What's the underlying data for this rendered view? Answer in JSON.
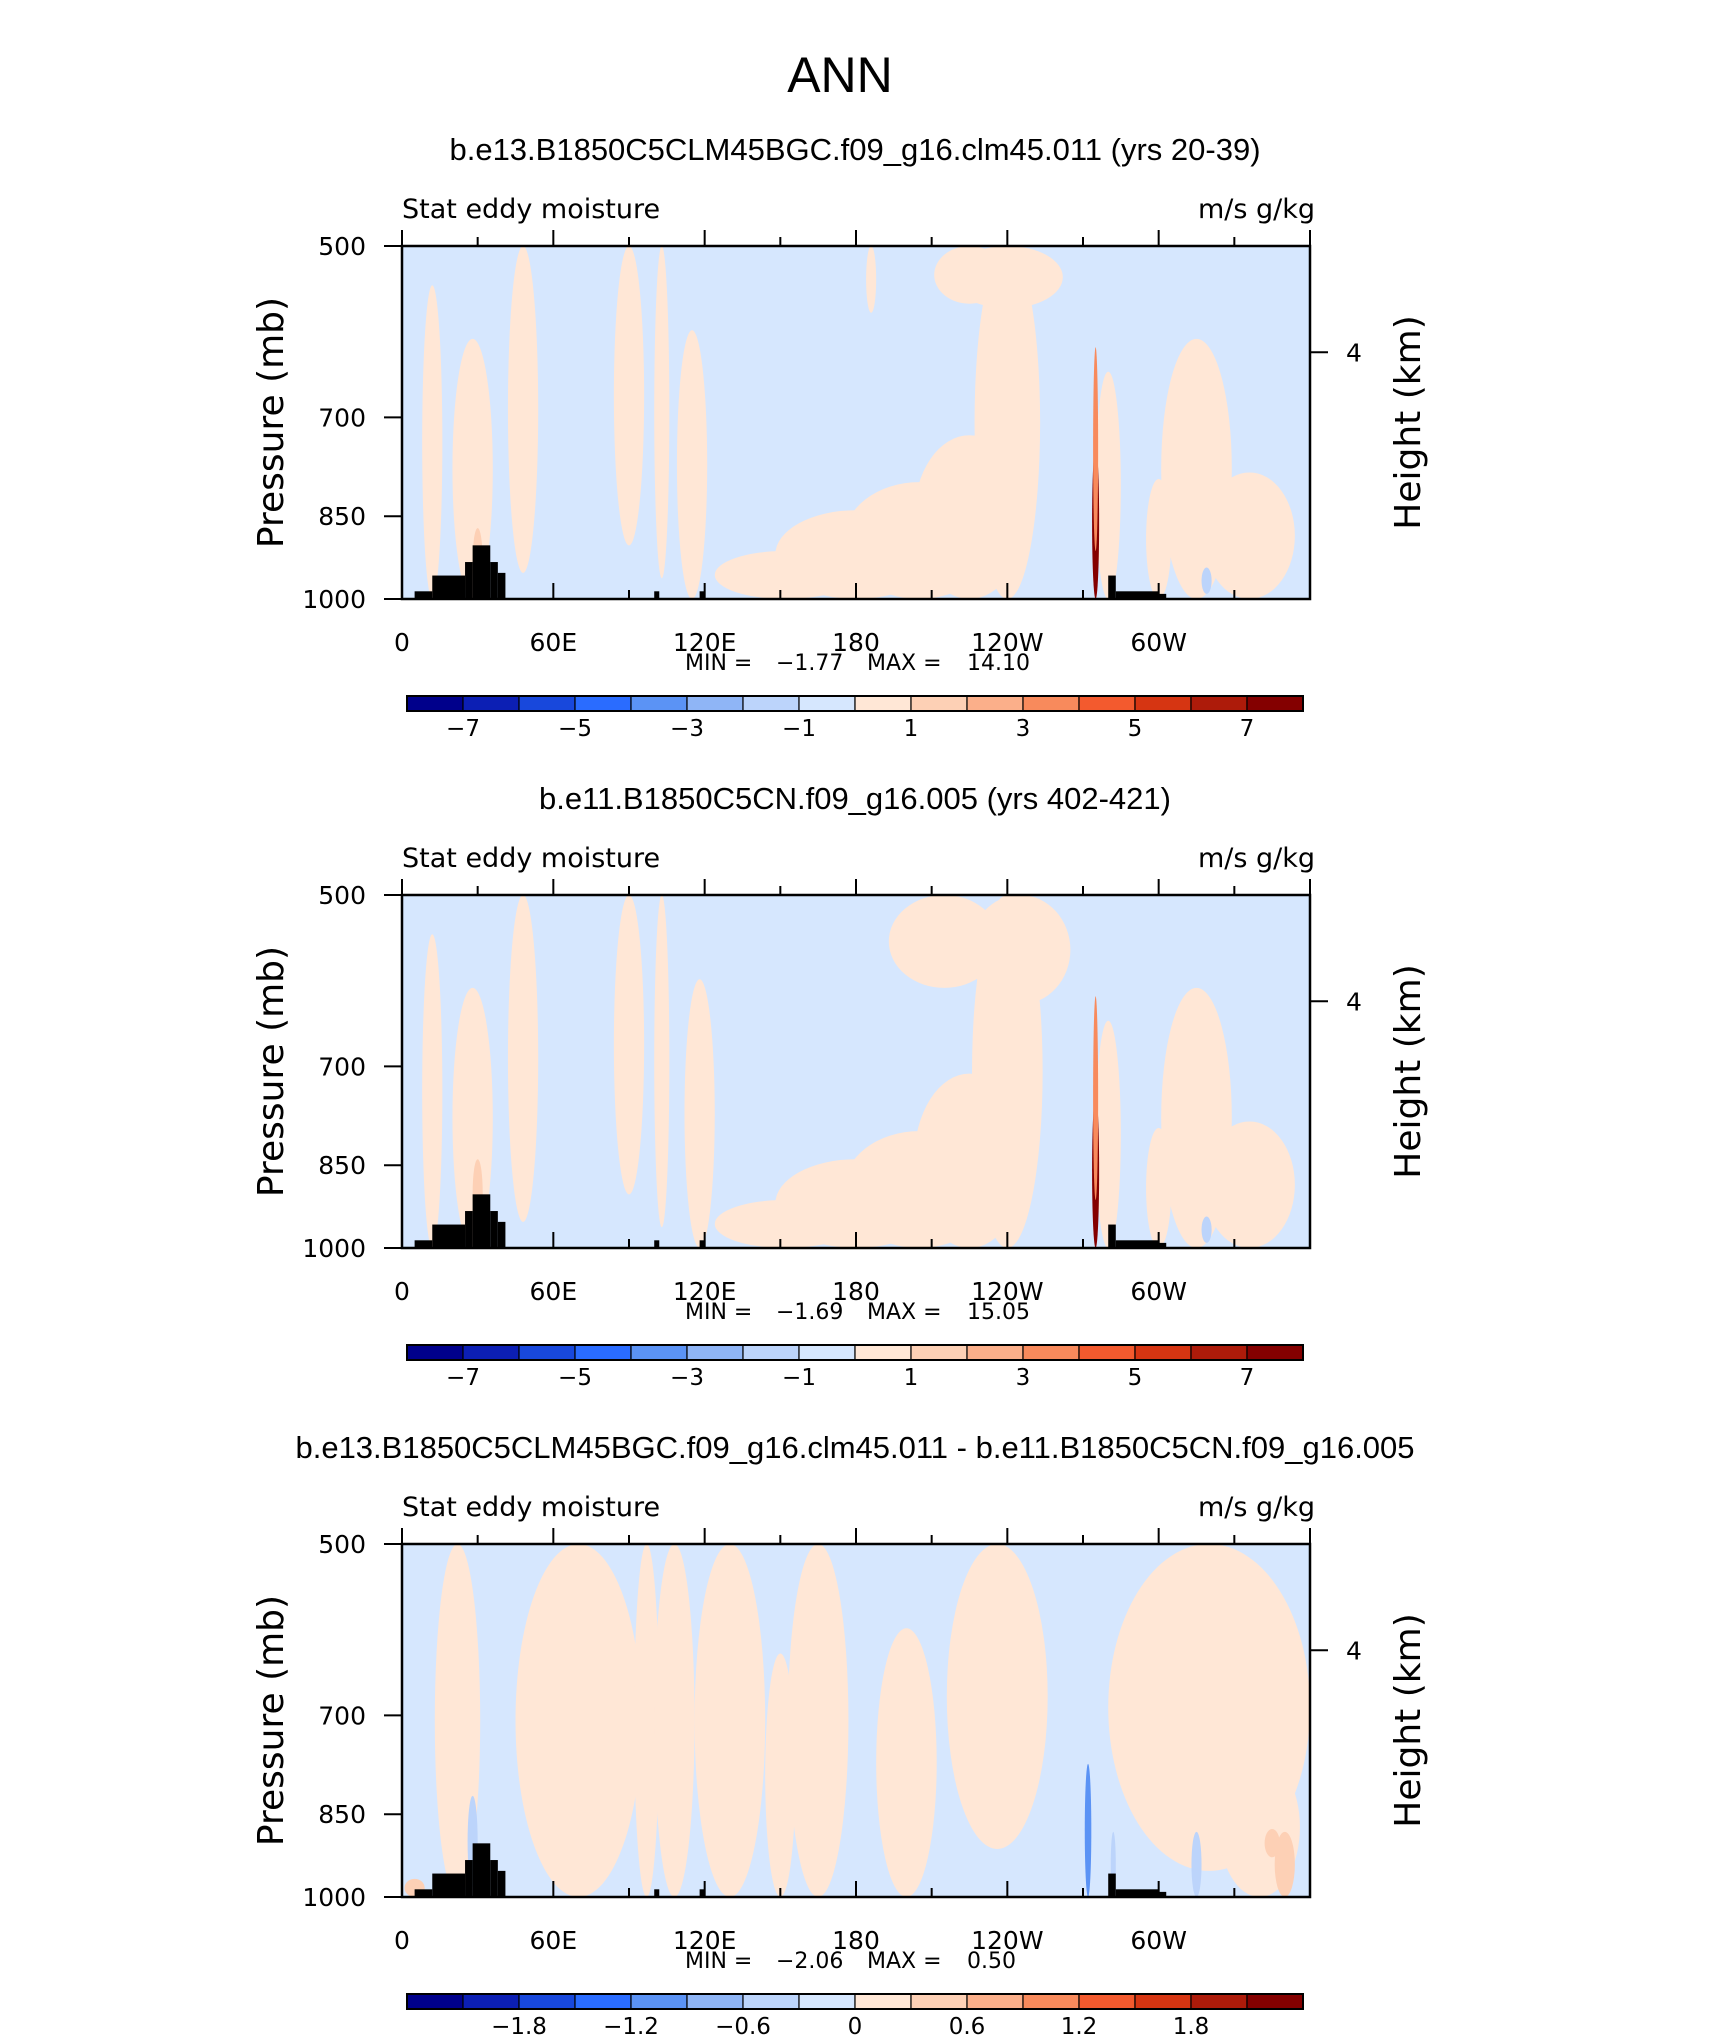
{
  "figure": {
    "title": "ANN"
  },
  "colors": {
    "ab_levels": [
      "#00008b",
      "#0c1fb4",
      "#1848dc",
      "#2a6cff",
      "#5b93f5",
      "#8fb5f6",
      "#bcd4fb",
      "#d6e7fe",
      "#ffe7d6",
      "#fdd0b5",
      "#fbaf8a",
      "#f88a5c",
      "#f35a2e",
      "#d63512",
      "#ad1b0a",
      "#840000"
    ],
    "diff_levels": [
      "#00008b",
      "#0c1fb4",
      "#1848dc",
      "#2a6cff",
      "#5b93f5",
      "#8fb5f6",
      "#bcd4fb",
      "#d6e7fe",
      "#ffe7d6",
      "#fdd0b5",
      "#fbaf8a",
      "#f88a5c",
      "#f35a2e",
      "#d63512",
      "#ad1b0a",
      "#840000"
    ],
    "terrain": "#000000"
  },
  "chart_data": [
    {
      "type": "heatmap",
      "title": "b.e13.B1850C5CLM45BGC.f09_g16.clm45.011 (yrs 20-39)",
      "left_label": "Stat eddy moisture",
      "right_label": "m/s g/kg",
      "ylabel": "Pressure (mb)",
      "ylabel_right": "Height (km)",
      "x_ticks": [
        "0",
        "60E",
        "120E",
        "180",
        "120W",
        "60W"
      ],
      "y_ticks": [
        "500",
        "700",
        "850",
        "1000"
      ],
      "y_right_ticks": [
        "4"
      ],
      "min_label": "MIN =",
      "min_value": "−1.77",
      "max_label": "MAX =",
      "max_value": "14.10",
      "colorbar_labels": [
        "−7",
        "−5",
        "−3",
        "−1",
        "1",
        "3",
        "5",
        "7"
      ],
      "palette": "ab_levels",
      "background_value": -0.5,
      "blobs": [
        {
          "lon": 12,
          "p": 920,
          "rx": 4,
          "rp": 380,
          "v": 0.5
        },
        {
          "lon": 28,
          "p": 880,
          "rx": 8,
          "rp": 280,
          "v": 0.5
        },
        {
          "lon": 48,
          "p": 600,
          "rx": 6,
          "rp": 350,
          "v": 0.5
        },
        {
          "lon": 90,
          "p": 620,
          "rx": 6,
          "rp": 280,
          "v": 0.4
        },
        {
          "lon": 103,
          "p": 700,
          "rx": 3,
          "rp": 260,
          "v": 0.4
        },
        {
          "lon": 115,
          "p": 820,
          "rx": 6,
          "rp": 230,
          "v": 0.4
        },
        {
          "lon": 152,
          "p": 965,
          "rx": 28,
          "rp": 55,
          "v": 0.4
        },
        {
          "lon": 180,
          "p": 960,
          "rx": 32,
          "rp": 120,
          "v": 0.4
        },
        {
          "lon": 205,
          "p": 905,
          "rx": 30,
          "rp": 110,
          "v": 0.4
        },
        {
          "lon": 225,
          "p": 865,
          "rx": 22,
          "rp": 140,
          "v": 0.4
        },
        {
          "lon": 240,
          "p": 760,
          "rx": 13,
          "rp": 300,
          "v": 0.4
        },
        {
          "lon": 240,
          "p": 520,
          "rx": 22,
          "rp": 45,
          "v": 0.4
        },
        {
          "lon": 225,
          "p": 530,
          "rx": 14,
          "rp": 30,
          "v": 0.4
        },
        {
          "lon": 186,
          "p": 520,
          "rx": 2,
          "rp": 50,
          "v": 0.4
        },
        {
          "lon": 280,
          "p": 860,
          "rx": 5,
          "rp": 220,
          "v": 0.5
        },
        {
          "lon": 300,
          "p": 930,
          "rx": 5,
          "rp": 140,
          "v": 0.4
        },
        {
          "lon": 315,
          "p": 800,
          "rx": 14,
          "rp": 200,
          "v": 0.4
        },
        {
          "lon": 336,
          "p": 900,
          "rx": 18,
          "rp": 120,
          "v": 0.4
        },
        {
          "lon": 319,
          "p": 965,
          "rx": 2,
          "rp": 25,
          "v": -1.4
        },
        {
          "lon": 275,
          "p": 900,
          "rx": 1.4,
          "rp": 160,
          "v": 8.5
        },
        {
          "lon": 275,
          "p": 760,
          "rx": 1.0,
          "rp": 150,
          "v": 3.0
        },
        {
          "lon": 30,
          "p": 930,
          "rx": 2,
          "rp": 60,
          "v": 1.2
        }
      ],
      "terrain": [
        {
          "lon0": 5,
          "lon1": 12,
          "p": 985
        },
        {
          "lon0": 12,
          "lon1": 25,
          "p": 955
        },
        {
          "lon0": 25,
          "lon1": 28,
          "p": 930
        },
        {
          "lon0": 28,
          "lon1": 35,
          "p": 900
        },
        {
          "lon0": 35,
          "lon1": 38,
          "p": 930
        },
        {
          "lon0": 38,
          "lon1": 41,
          "p": 950
        },
        {
          "lon0": 100,
          "lon1": 102,
          "p": 985
        },
        {
          "lon0": 118,
          "lon1": 120,
          "p": 985
        },
        {
          "lon0": 280,
          "lon1": 283,
          "p": 955
        },
        {
          "lon0": 283,
          "lon1": 300,
          "p": 985
        },
        {
          "lon0": 300,
          "lon1": 303,
          "p": 990
        }
      ]
    },
    {
      "type": "heatmap",
      "title": "b.e11.B1850C5CN.f09_g16.005 (yrs 402-421)",
      "left_label": "Stat eddy moisture",
      "right_label": "m/s g/kg",
      "ylabel": "Pressure (mb)",
      "ylabel_right": "Height (km)",
      "x_ticks": [
        "0",
        "60E",
        "120E",
        "180",
        "120W",
        "60W"
      ],
      "y_ticks": [
        "500",
        "700",
        "850",
        "1000"
      ],
      "y_right_ticks": [
        "4"
      ],
      "min_label": "MIN =",
      "min_value": "−1.69",
      "max_label": "MAX =",
      "max_value": "15.05",
      "colorbar_labels": [
        "−7",
        "−5",
        "−3",
        "−1",
        "1",
        "3",
        "5",
        "7"
      ],
      "palette": "ab_levels",
      "background_value": -0.5,
      "blobs": [
        {
          "lon": 12,
          "p": 920,
          "rx": 4,
          "rp": 380,
          "v": 0.5
        },
        {
          "lon": 28,
          "p": 880,
          "rx": 8,
          "rp": 280,
          "v": 0.5
        },
        {
          "lon": 48,
          "p": 600,
          "rx": 6,
          "rp": 350,
          "v": 0.5
        },
        {
          "lon": 90,
          "p": 620,
          "rx": 6,
          "rp": 280,
          "v": 0.4
        },
        {
          "lon": 103,
          "p": 700,
          "rx": 3,
          "rp": 260,
          "v": 0.4
        },
        {
          "lon": 118,
          "p": 820,
          "rx": 6,
          "rp": 230,
          "v": 0.4
        },
        {
          "lon": 152,
          "p": 965,
          "rx": 28,
          "rp": 55,
          "v": 0.4
        },
        {
          "lon": 180,
          "p": 960,
          "rx": 32,
          "rp": 120,
          "v": 0.4
        },
        {
          "lon": 205,
          "p": 905,
          "rx": 30,
          "rp": 110,
          "v": 0.4
        },
        {
          "lon": 225,
          "p": 860,
          "rx": 22,
          "rp": 150,
          "v": 0.4
        },
        {
          "lon": 240,
          "p": 760,
          "rx": 14,
          "rp": 300,
          "v": 0.4
        },
        {
          "lon": 215,
          "p": 540,
          "rx": 22,
          "rp": 60,
          "v": 0.4
        },
        {
          "lon": 245,
          "p": 560,
          "rx": 20,
          "rp": 60,
          "v": 0.4
        },
        {
          "lon": 280,
          "p": 860,
          "rx": 5,
          "rp": 220,
          "v": 0.5
        },
        {
          "lon": 300,
          "p": 930,
          "rx": 5,
          "rp": 140,
          "v": 0.4
        },
        {
          "lon": 315,
          "p": 800,
          "rx": 14,
          "rp": 200,
          "v": 0.4
        },
        {
          "lon": 336,
          "p": 900,
          "rx": 18,
          "rp": 120,
          "v": 0.4
        },
        {
          "lon": 319,
          "p": 965,
          "rx": 2,
          "rp": 25,
          "v": -1.4
        },
        {
          "lon": 275,
          "p": 900,
          "rx": 1.4,
          "rp": 160,
          "v": 9.0
        },
        {
          "lon": 275,
          "p": 760,
          "rx": 1.0,
          "rp": 150,
          "v": 3.0
        },
        {
          "lon": 30,
          "p": 900,
          "rx": 2,
          "rp": 60,
          "v": 1.2
        }
      ],
      "terrain": [
        {
          "lon0": 5,
          "lon1": 12,
          "p": 985
        },
        {
          "lon0": 12,
          "lon1": 25,
          "p": 955
        },
        {
          "lon0": 25,
          "lon1": 28,
          "p": 930
        },
        {
          "lon0": 28,
          "lon1": 35,
          "p": 900
        },
        {
          "lon0": 35,
          "lon1": 38,
          "p": 930
        },
        {
          "lon0": 38,
          "lon1": 41,
          "p": 950
        },
        {
          "lon0": 100,
          "lon1": 102,
          "p": 985
        },
        {
          "lon0": 118,
          "lon1": 120,
          "p": 985
        },
        {
          "lon0": 280,
          "lon1": 283,
          "p": 955
        },
        {
          "lon0": 283,
          "lon1": 300,
          "p": 985
        },
        {
          "lon0": 300,
          "lon1": 303,
          "p": 990
        }
      ]
    },
    {
      "type": "heatmap",
      "title": "b.e13.B1850C5CLM45BGC.f09_g16.clm45.011 - b.e11.B1850C5CN.f09_g16.005",
      "left_label": "Stat eddy moisture",
      "right_label": "m/s g/kg",
      "ylabel": "Pressure (mb)",
      "ylabel_right": "Height (km)",
      "x_ticks": [
        "0",
        "60E",
        "120E",
        "180",
        "120W",
        "60W"
      ],
      "y_ticks": [
        "500",
        "700",
        "850",
        "1000"
      ],
      "y_right_ticks": [
        "4"
      ],
      "min_label": "MIN =",
      "min_value": "−2.06",
      "max_label": "MAX =",
      "max_value": "0.50",
      "colorbar_labels": [
        "−1.8",
        "−1.2",
        "−0.6",
        "0",
        "0.6",
        "1.2",
        "1.8"
      ],
      "palette": "diff_levels",
      "background_value": -0.1,
      "blobs": [
        {
          "lon": 22,
          "p": 640,
          "rx": 9,
          "rp": 380,
          "v": 0.1
        },
        {
          "lon": 70,
          "p": 700,
          "rx": 25,
          "rp": 420,
          "v": 0.1
        },
        {
          "lon": 97,
          "p": 700,
          "rx": 5,
          "rp": 400,
          "v": 0.1
        },
        {
          "lon": 108,
          "p": 660,
          "rx": 8,
          "rp": 340,
          "v": 0.1
        },
        {
          "lon": 130,
          "p": 760,
          "rx": 14,
          "rp": 280,
          "v": 0.1
        },
        {
          "lon": 150,
          "p": 840,
          "rx": 6,
          "rp": 220,
          "v": 0.1
        },
        {
          "lon": 165,
          "p": 700,
          "rx": 12,
          "rp": 320,
          "v": 0.1
        },
        {
          "lon": 200,
          "p": 830,
          "rx": 12,
          "rp": 240,
          "v": 0.1
        },
        {
          "lon": 236,
          "p": 650,
          "rx": 20,
          "rp": 260,
          "v": 0.1
        },
        {
          "lon": 238,
          "p": 580,
          "rx": 6,
          "rp": 100,
          "v": 0.1
        },
        {
          "lon": 320,
          "p": 700,
          "rx": 40,
          "rp": 250,
          "v": 0.1
        },
        {
          "lon": 340,
          "p": 880,
          "rx": 16,
          "rp": 120,
          "v": 0.1
        },
        {
          "lon": 350,
          "p": 940,
          "rx": 4,
          "rp": 60,
          "v": 0.35
        },
        {
          "lon": 345,
          "p": 900,
          "rx": 3,
          "rp": 25,
          "v": 0.35
        },
        {
          "lon": 5,
          "p": 985,
          "rx": 4,
          "rp": 20,
          "v": 0.35
        },
        {
          "lon": 28,
          "p": 900,
          "rx": 2,
          "rp": 80,
          "v": -0.5
        },
        {
          "lon": 272,
          "p": 920,
          "rx": 1.3,
          "rp": 150,
          "v": -1.2
        },
        {
          "lon": 282,
          "p": 940,
          "rx": 1,
          "rp": 60,
          "v": -0.5
        },
        {
          "lon": 315,
          "p": 940,
          "rx": 2,
          "rp": 60,
          "v": -0.5
        }
      ],
      "terrain": [
        {
          "lon0": 5,
          "lon1": 12,
          "p": 985
        },
        {
          "lon0": 12,
          "lon1": 25,
          "p": 955
        },
        {
          "lon0": 25,
          "lon1": 28,
          "p": 930
        },
        {
          "lon0": 28,
          "lon1": 35,
          "p": 900
        },
        {
          "lon0": 35,
          "lon1": 38,
          "p": 930
        },
        {
          "lon0": 38,
          "lon1": 41,
          "p": 950
        },
        {
          "lon0": 100,
          "lon1": 102,
          "p": 985
        },
        {
          "lon0": 118,
          "lon1": 120,
          "p": 985
        },
        {
          "lon0": 280,
          "lon1": 283,
          "p": 955
        },
        {
          "lon0": 283,
          "lon1": 300,
          "p": 985
        },
        {
          "lon0": 300,
          "lon1": 303,
          "p": 990
        }
      ]
    }
  ]
}
